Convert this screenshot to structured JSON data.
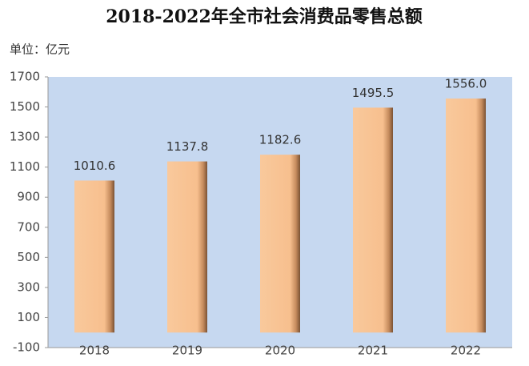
{
  "chart_data": {
    "type": "bar",
    "title": "2018-2022年全市社会消费品零售总额",
    "subtitle": "单位：亿元",
    "categories": [
      "2018",
      "2019",
      "2020",
      "2021",
      "2022"
    ],
    "values": [
      1010.6,
      1137.8,
      1182.6,
      1495.5,
      1556.0
    ],
    "value_labels": [
      "1010.6",
      "1137.8",
      "1182.6",
      "1495.5",
      "1556.0"
    ],
    "color": "#f7bf8e",
    "background": "#c6d8f0",
    "ylim": [
      -100,
      1700
    ],
    "yticks": [
      -100,
      100,
      300,
      500,
      700,
      900,
      1100,
      1300,
      1500,
      1700
    ]
  }
}
